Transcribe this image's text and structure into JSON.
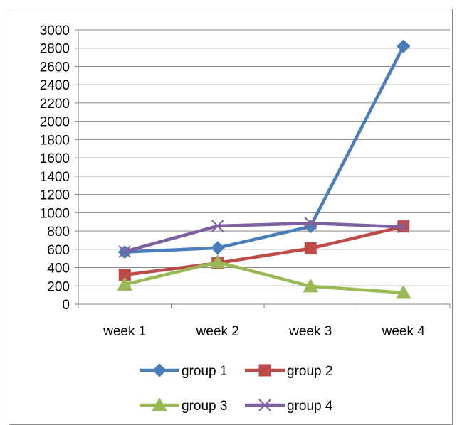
{
  "chart_data": {
    "type": "line",
    "categories": [
      "week 1",
      "week 2",
      "week 3",
      "week 4"
    ],
    "ylim": [
      0,
      3000
    ],
    "ytick_step": 200,
    "grid": true,
    "legend_placement": "bottom",
    "series": [
      {
        "name": "group 1",
        "values": [
          570,
          615,
          850,
          2820
        ],
        "color": "#4A7EBB",
        "marker": "diamond"
      },
      {
        "name": "group 2",
        "values": [
          320,
          450,
          610,
          850
        ],
        "color": "#BE4B48",
        "marker": "square"
      },
      {
        "name": "group 3",
        "values": [
          215,
          460,
          195,
          125
        ],
        "color": "#98B954",
        "marker": "triangle"
      },
      {
        "name": "group 4",
        "values": [
          575,
          855,
          885,
          845
        ],
        "color": "#7D5FA0",
        "marker": "x"
      }
    ]
  }
}
